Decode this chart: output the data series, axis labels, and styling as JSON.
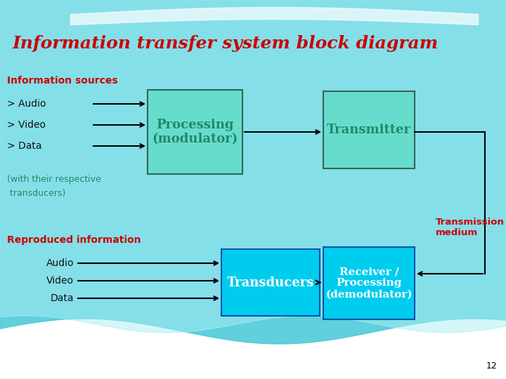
{
  "title": "Information transfer system block diagram",
  "title_color": "#cc0000",
  "title_fontsize": 18,
  "box_color_top": "#66ddcc",
  "box_color_bottom": "#00ccee",
  "text_color_dark": "#111111",
  "text_color_red": "#cc0000",
  "text_color_teal": "#228866",
  "info_sources_label": "Information sources",
  "info_sources_items": [
    "> Audio",
    "> Video",
    "> Data"
  ],
  "info_sources_note1": "(with their respective",
  "info_sources_note2": " transducers)",
  "reproduced_label": "Reproduced information",
  "reproduced_items": [
    "Audio",
    "Video",
    "Data"
  ],
  "box1_text": "Processing\n(modulator)",
  "box2_text": "Transmitter",
  "box3_text": "Transducers",
  "box4_text": "Receiver /\nProcessing\n(demodulator)",
  "transmission_text": "Transmission\nmedium",
  "page_num": "12",
  "wave_color1": "#44c8d8",
  "wave_color2": "#88dde8",
  "wave_color3": "#aaeef5"
}
